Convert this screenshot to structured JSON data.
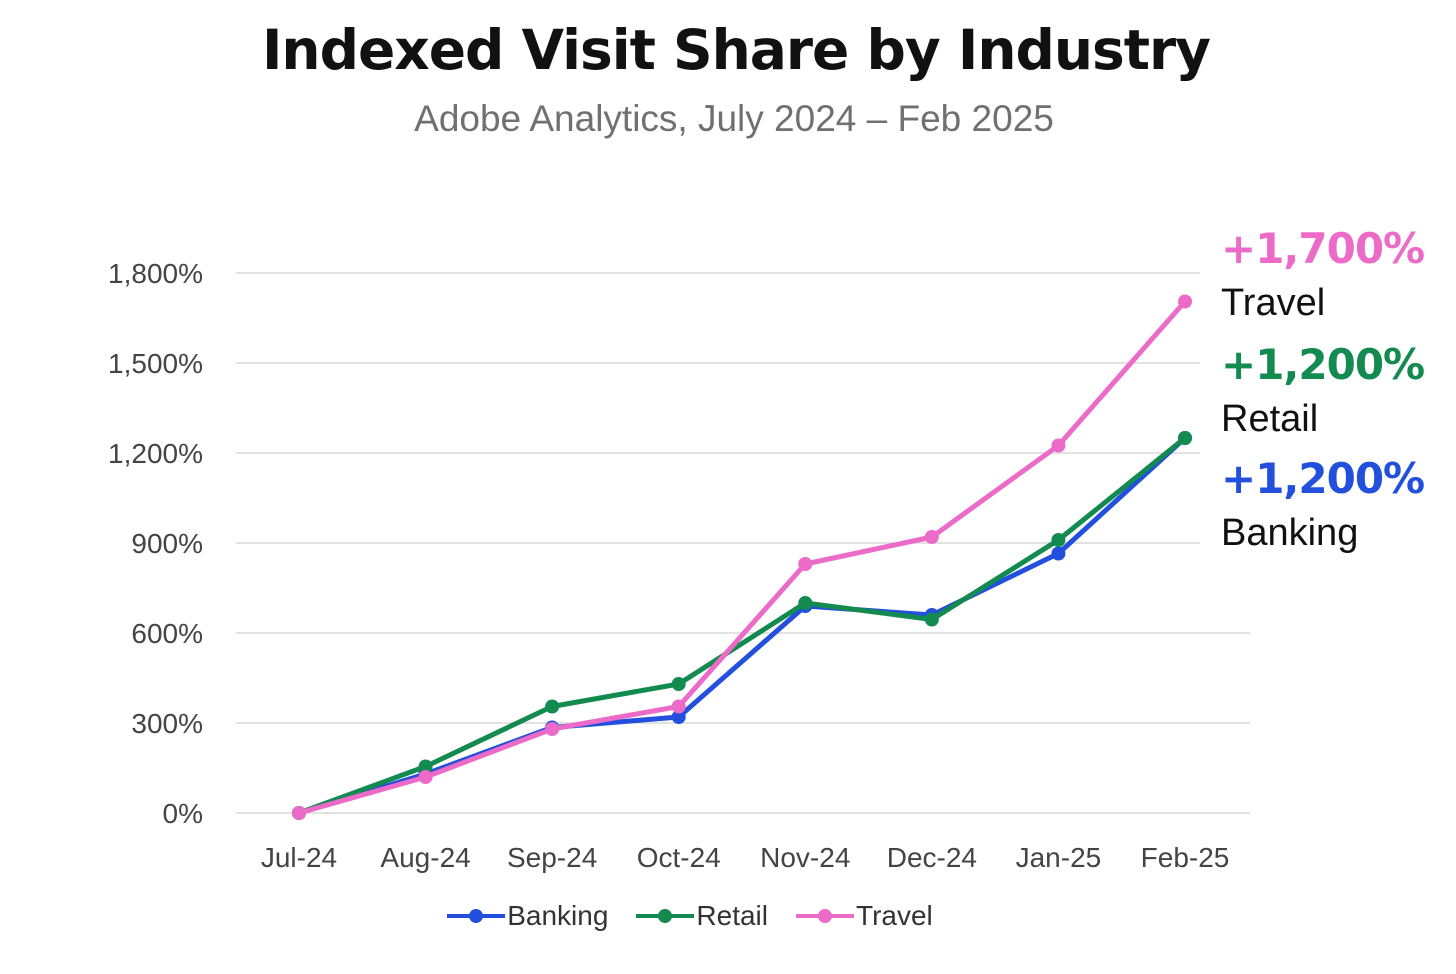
{
  "title": "Indexed Visit Share by Industry",
  "subtitle": "Adobe Analytics, July 2024 – Feb 2025",
  "chart_data": {
    "type": "line",
    "title": "Indexed Visit Share by Industry",
    "subtitle": "Adobe Analytics, July 2024 – Feb 2025",
    "categories": [
      "Jul-24",
      "Aug-24",
      "Sep-24",
      "Oct-24",
      "Nov-24",
      "Dec-24",
      "Jan-25",
      "Feb-25"
    ],
    "yticks": [
      0,
      300,
      600,
      900,
      1200,
      1500,
      1800
    ],
    "ytick_labels": [
      "0%",
      "300%",
      "600%",
      "900%",
      "1,200%",
      "1,500%",
      "1,800%"
    ],
    "ylim": [
      0,
      1800
    ],
    "grid": true,
    "xlabel": "",
    "ylabel": "",
    "legend_position": "bottom",
    "series": [
      {
        "name": "Banking",
        "color": "#2250dc",
        "values": [
          0,
          130,
          285,
          320,
          690,
          660,
          865,
          1250
        ]
      },
      {
        "name": "Retail",
        "color": "#138a4f",
        "values": [
          0,
          155,
          355,
          430,
          700,
          645,
          910,
          1250
        ]
      },
      {
        "name": "Travel",
        "color": "#ec6ac8",
        "values": [
          0,
          120,
          280,
          355,
          830,
          920,
          1225,
          1705
        ]
      }
    ],
    "annotations": [
      {
        "series": "Travel",
        "value_label": "+1,700%",
        "name_label": "Travel",
        "color": "#ec6ac8"
      },
      {
        "series": "Retail",
        "value_label": "+1,200%",
        "name_label": "Retail",
        "color": "#138a4f"
      },
      {
        "series": "Banking",
        "value_label": "+1,200%",
        "name_label": "Banking",
        "color": "#2250dc"
      }
    ]
  }
}
